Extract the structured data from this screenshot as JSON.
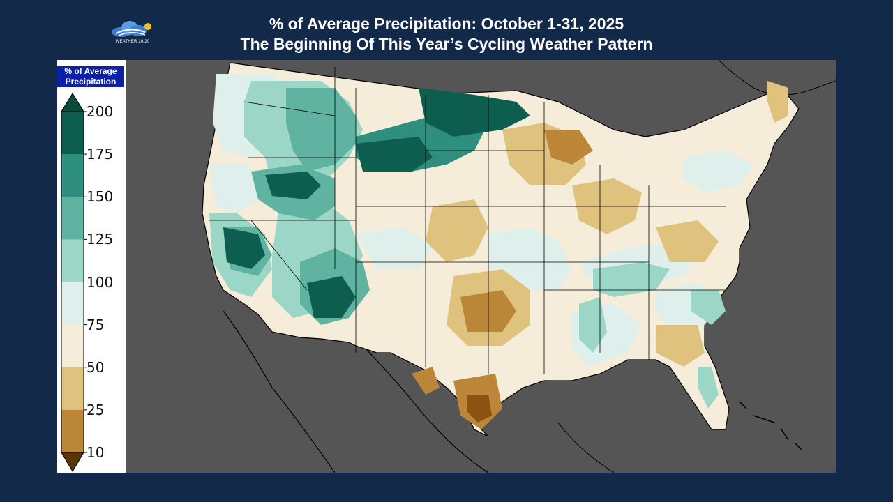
{
  "header": {
    "title_line1": "% of Average Precipitation: October 1-31, 2025",
    "title_line2": "The Beginning Of This Year’s Cycling Weather Pattern"
  },
  "logo": {
    "text": "WEATHER 20/20"
  },
  "legend": {
    "title_line1": "% of Average",
    "title_line2": "Precipitation",
    "ticks": [
      "200",
      "175",
      "150",
      "125",
      "100",
      "75",
      "50",
      "25",
      "10"
    ],
    "bands": [
      {
        "range": "175-200",
        "color": "#0d5e4e"
      },
      {
        "range": "150-175",
        "color": "#2f8f7e"
      },
      {
        "range": "125-150",
        "color": "#5fb3a0"
      },
      {
        "range": "100-125",
        "color": "#9bd6c7"
      },
      {
        "range": "75-100",
        "color": "#dff0ec"
      },
      {
        "range": "50-75",
        "color": "#f5ecd9"
      },
      {
        "range": "25-50",
        "color": "#dfc27e"
      },
      {
        "range": "10-25",
        "color": "#bb8638"
      },
      {
        "range": "0-10",
        "color": "#8c5212"
      }
    ],
    "cap_high_color": "#0b4a3c",
    "cap_low_color": "#5a3508"
  },
  "map": {
    "background_color": "#555555",
    "region": "Contiguous United States"
  }
}
